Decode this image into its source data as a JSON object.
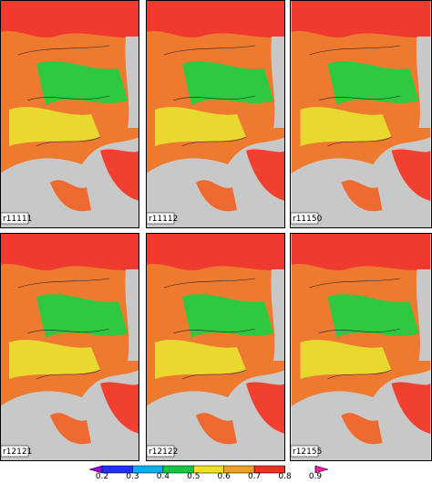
{
  "panels": [
    {
      "label": "r11111"
    },
    {
      "label": "r11112"
    },
    {
      "label": "r11150"
    },
    {
      "label": "r12121"
    },
    {
      "label": "r12122"
    },
    {
      "label": "r12155"
    }
  ],
  "colorbar": {
    "ticks": [
      0.2,
      0.3,
      0.4,
      0.5,
      0.6,
      0.7,
      0.8,
      0.9
    ],
    "colors": [
      "#a000e0",
      "#2030ff",
      "#00b0f0",
      "#10c840",
      "#f0e020",
      "#f0a020",
      "#f03020",
      "#f020a0"
    ]
  }
}
